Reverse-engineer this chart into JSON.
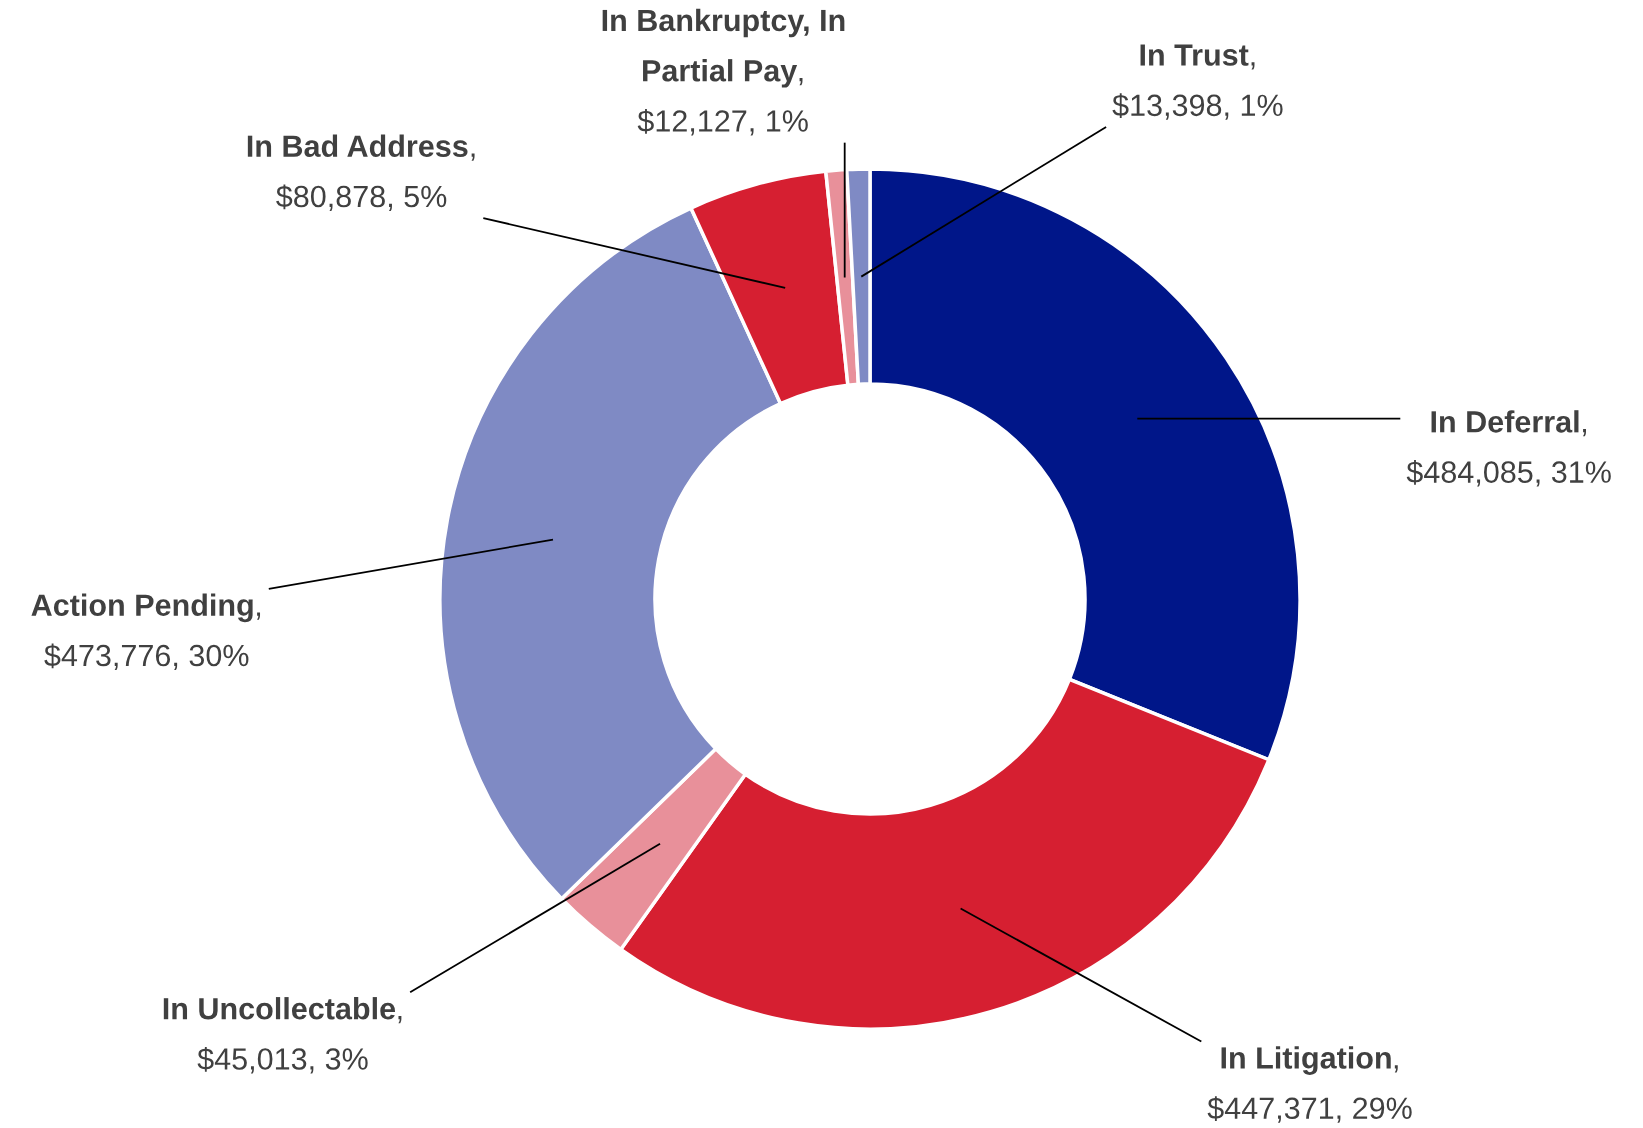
{
  "chart_data": {
    "type": "donut",
    "categories": [
      "In Deferral",
      "In Litigation",
      "In Uncollectable",
      "Action Pending",
      "In Bad Address",
      "In Bankruptcy, In Partial Pay",
      "In Trust"
    ],
    "values": [
      484085,
      447371,
      45013,
      473776,
      80878,
      12127,
      13398
    ],
    "value_labels": [
      ", $484,085, 31%",
      ", $447,371, 29%",
      ", $45,013, 3%",
      ", $473,776, 30%",
      ", $80,878, 5%",
      ", $12,127, 1%",
      ", $13,398, 1%"
    ],
    "colors": [
      "#001689",
      "#d61f31",
      "#e8909a",
      "#7f8ac4",
      "#d61f31",
      "#e8909a",
      "#7f8ac4"
    ],
    "legend": false
  }
}
